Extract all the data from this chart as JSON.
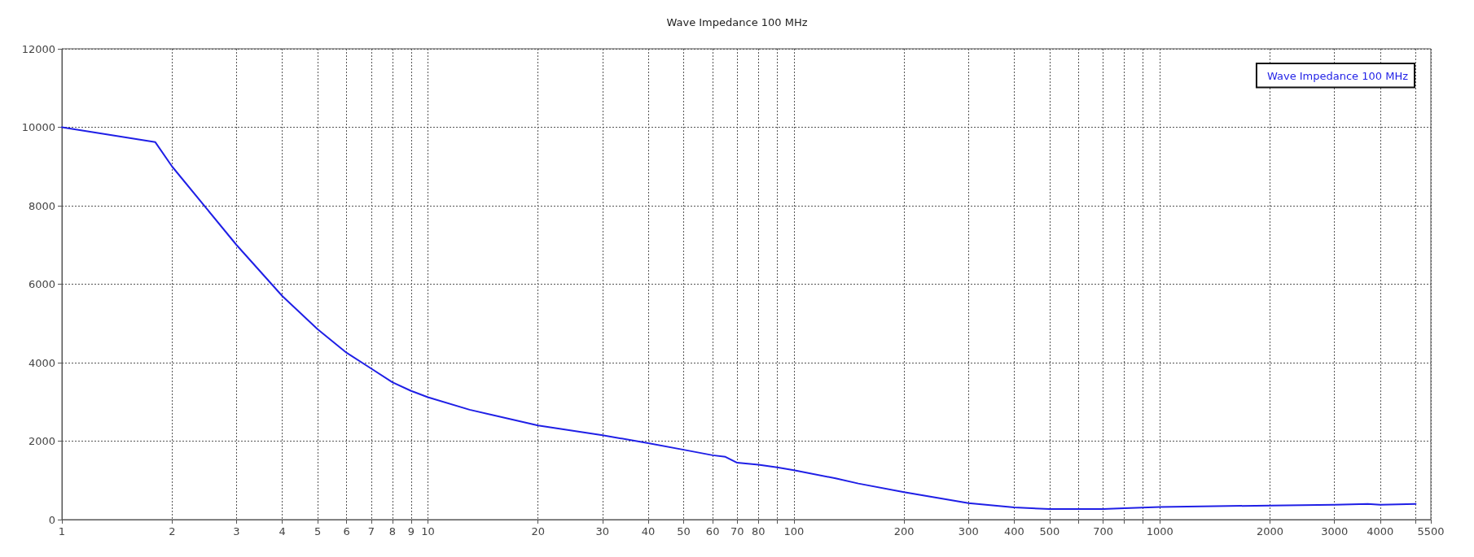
{
  "chart_data": {
    "type": "line",
    "title": "Wave Impedance 100 MHz",
    "log": "x",
    "grid": true,
    "legend": "top right",
    "line_style": "solid",
    "marker": "none",
    "xlim": [
      1,
      5500
    ],
    "xticks": [
      1,
      2,
      3,
      4,
      5,
      6,
      7,
      8,
      9,
      10,
      20,
      30,
      40,
      50,
      60,
      70,
      80,
      {
        "value": 90,
        "label": null
      },
      100,
      200,
      300,
      400,
      500,
      {
        "value": 600,
        "label": null
      },
      700,
      {
        "value": 800,
        "label": null
      },
      {
        "value": 900,
        "label": null
      },
      1000,
      2000,
      3000,
      4000,
      {
        "value": 5000,
        "label": null
      },
      5500
    ],
    "ylim": [
      0,
      12000
    ],
    "yticks": [
      0,
      2000,
      4000,
      6000,
      8000,
      10000,
      12000
    ],
    "series": [
      {
        "name": "Wave Impedance 100 MHz",
        "color": "#1f1fe6",
        "x": [
          1,
          1.8,
          2,
          3,
          4,
          5,
          6,
          7,
          8,
          9,
          10,
          13,
          20,
          30,
          40,
          50,
          60,
          65,
          70,
          80,
          90,
          100,
          130,
          150,
          200,
          300,
          400,
          500,
          700,
          800,
          1000,
          2000,
          3000,
          3700,
          4000,
          5000
        ],
        "values": [
          10000,
          9620,
          9000,
          7000,
          5700,
          4850,
          4250,
          3850,
          3500,
          3280,
          3120,
          2800,
          2400,
          2150,
          1950,
          1780,
          1640,
          1600,
          1450,
          1400,
          1330,
          1260,
          1050,
          920,
          700,
          420,
          310,
          270,
          270,
          290,
          320,
          360,
          380,
          400,
          380,
          400
        ]
      }
    ]
  }
}
